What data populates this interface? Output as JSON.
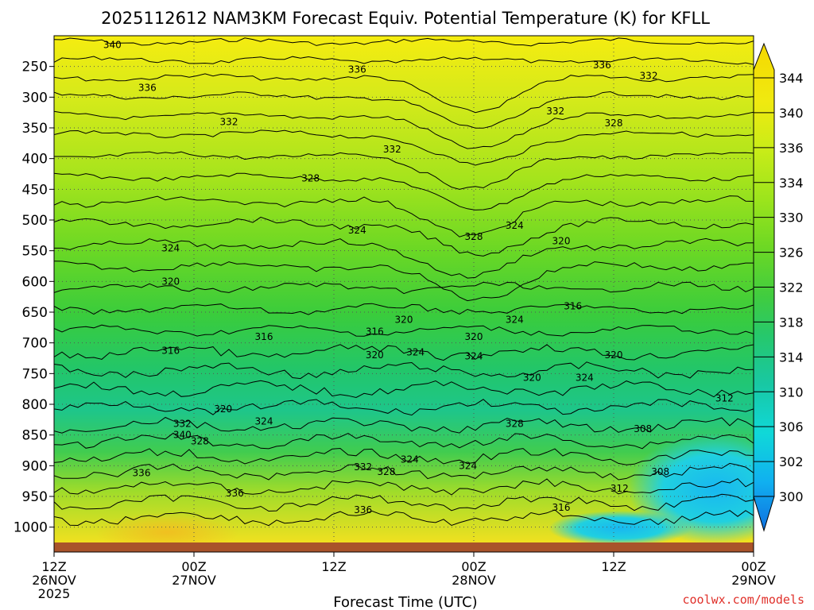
{
  "chart_data": {
    "type": "heatmap",
    "title": "2025112612 NAM3KM Forecast Equiv. Potential Temperature (K) for KFLL",
    "xlabel": "Forecast Time (UTC)",
    "ylabel": "",
    "x_ticks": [
      {
        "hours": 0,
        "line1": "12Z",
        "line2": "26NOV",
        "line3": "2025"
      },
      {
        "hours": 12,
        "line1": "00Z",
        "line2": "27NOV",
        "line3": ""
      },
      {
        "hours": 24,
        "line1": "12Z",
        "line2": "",
        "line3": ""
      },
      {
        "hours": 36,
        "line1": "00Z",
        "line2": "28NOV",
        "line3": ""
      },
      {
        "hours": 48,
        "line1": "12Z",
        "line2": "",
        "line3": ""
      },
      {
        "hours": 60,
        "line1": "00Z",
        "line2": "29NOV",
        "line3": ""
      }
    ],
    "xlim": [
      0,
      60
    ],
    "y_ticks": [
      "250",
      "300",
      "350",
      "400",
      "450",
      "500",
      "550",
      "600",
      "650",
      "700",
      "750",
      "800",
      "850",
      "900",
      "950",
      "1000"
    ],
    "y_tick_values": [
      250,
      300,
      350,
      400,
      450,
      500,
      550,
      600,
      650,
      700,
      750,
      800,
      850,
      900,
      950,
      1000
    ],
    "ylim": [
      200,
      1025
    ],
    "colorbar": {
      "labels": [
        "344",
        "340",
        "336",
        "334",
        "330",
        "326",
        "322",
        "318",
        "314",
        "310",
        "306",
        "302",
        "300"
      ],
      "colors": [
        "#f5e800",
        "#e8ea10",
        "#c8ec18",
        "#a8e818",
        "#80de20",
        "#58d428",
        "#30cc48",
        "#20c870",
        "#18c8a0",
        "#10d8d8",
        "#10b8f0",
        "#1090f0",
        "#1070e0"
      ]
    },
    "contour_labels": [
      {
        "hours": 5.0,
        "level": 215,
        "text": "340"
      },
      {
        "hours": 26.0,
        "level": 255,
        "text": "336"
      },
      {
        "hours": 8.0,
        "level": 285,
        "text": "336"
      },
      {
        "hours": 47.0,
        "level": 248,
        "text": "336"
      },
      {
        "hours": 51.0,
        "level": 265,
        "text": "332"
      },
      {
        "hours": 15.0,
        "level": 340,
        "text": "332"
      },
      {
        "hours": 29.0,
        "level": 385,
        "text": "332"
      },
      {
        "hours": 43.0,
        "level": 323,
        "text": "332"
      },
      {
        "hours": 48.0,
        "level": 342,
        "text": "328"
      },
      {
        "hours": 22.0,
        "level": 432,
        "text": "328"
      },
      {
        "hours": 26.0,
        "level": 517,
        "text": "324"
      },
      {
        "hours": 36.0,
        "level": 527,
        "text": "328"
      },
      {
        "hours": 39.5,
        "level": 509,
        "text": "324"
      },
      {
        "hours": 43.5,
        "level": 534,
        "text": "320"
      },
      {
        "hours": 10.0,
        "level": 546,
        "text": "324"
      },
      {
        "hours": 10.0,
        "level": 600,
        "text": "320"
      },
      {
        "hours": 10.0,
        "level": 713,
        "text": "316"
      },
      {
        "hours": 18.0,
        "level": 690,
        "text": "316"
      },
      {
        "hours": 27.5,
        "level": 682,
        "text": "316"
      },
      {
        "hours": 30.0,
        "level": 662,
        "text": "320"
      },
      {
        "hours": 44.5,
        "level": 640,
        "text": "316"
      },
      {
        "hours": 39.5,
        "level": 662,
        "text": "324"
      },
      {
        "hours": 36.0,
        "level": 690,
        "text": "320"
      },
      {
        "hours": 36.0,
        "level": 722,
        "text": "324"
      },
      {
        "hours": 31.0,
        "level": 715,
        "text": "324"
      },
      {
        "hours": 27.5,
        "level": 720,
        "text": "320"
      },
      {
        "hours": 48.0,
        "level": 720,
        "text": "320"
      },
      {
        "hours": 45.5,
        "level": 757,
        "text": "324"
      },
      {
        "hours": 41.0,
        "level": 757,
        "text": "320"
      },
      {
        "hours": 14.5,
        "level": 808,
        "text": "320"
      },
      {
        "hours": 18.0,
        "level": 828,
        "text": "324"
      },
      {
        "hours": 11.0,
        "level": 832,
        "text": "332"
      },
      {
        "hours": 11.0,
        "level": 850,
        "text": "340"
      },
      {
        "hours": 12.5,
        "level": 860,
        "text": "328"
      },
      {
        "hours": 39.5,
        "level": 832,
        "text": "328"
      },
      {
        "hours": 50.5,
        "level": 840,
        "text": "308"
      },
      {
        "hours": 57.5,
        "level": 790,
        "text": "312"
      },
      {
        "hours": 7.5,
        "level": 912,
        "text": "336"
      },
      {
        "hours": 15.5,
        "level": 945,
        "text": "336"
      },
      {
        "hours": 26.5,
        "level": 902,
        "text": "332"
      },
      {
        "hours": 28.5,
        "level": 910,
        "text": "328"
      },
      {
        "hours": 30.5,
        "level": 890,
        "text": "324"
      },
      {
        "hours": 35.5,
        "level": 900,
        "text": "324"
      },
      {
        "hours": 26.5,
        "level": 972,
        "text": "336"
      },
      {
        "hours": 43.5,
        "level": 968,
        "text": "316"
      },
      {
        "hours": 48.5,
        "level": 937,
        "text": "312"
      },
      {
        "hours": 52.0,
        "level": 910,
        "text": "308"
      }
    ]
  },
  "credit": "coolwx.com/models"
}
